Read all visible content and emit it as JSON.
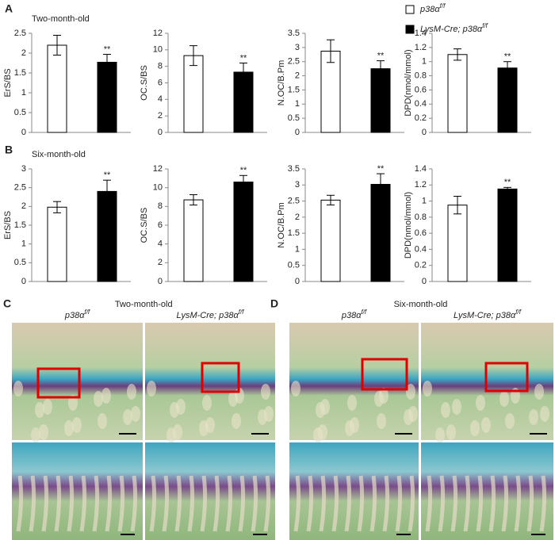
{
  "panel_labels": [
    "A",
    "B",
    "C",
    "D"
  ],
  "legend": [
    {
      "text": "p38α",
      "sup": "f/f",
      "color": "#ffffff"
    },
    {
      "text": "LysM-Cre; p38α",
      "sup": "f/f",
      "color": "#000000"
    }
  ],
  "chart_data": [
    {
      "type": "bar",
      "title": "Two-month-old",
      "ylabel": "ErS/BS",
      "categories": [
        null,
        null
      ],
      "values": [
        2.2,
        1.77
      ],
      "errors": [
        0.25,
        0.2
      ],
      "significance": [
        null,
        "**"
      ],
      "colors": [
        "#ffffff",
        "#000000"
      ],
      "ylim": [
        0,
        2.5
      ],
      "yticks": [
        0,
        0.5,
        1,
        1.5,
        2,
        2.5
      ]
    },
    {
      "type": "bar",
      "ylabel": "OC.S/BS",
      "categories": [
        null,
        null
      ],
      "values": [
        9.3,
        7.3
      ],
      "errors": [
        1.2,
        1.1
      ],
      "significance": [
        null,
        "**"
      ],
      "colors": [
        "#ffffff",
        "#000000"
      ],
      "ylim": [
        0,
        12
      ],
      "yticks": [
        0,
        2,
        4,
        6,
        8,
        10,
        12
      ]
    },
    {
      "type": "bar",
      "ylabel": "N.OC/B.Pm",
      "categories": [
        null,
        null
      ],
      "values": [
        2.87,
        2.25
      ],
      "errors": [
        0.4,
        0.28
      ],
      "significance": [
        null,
        "**"
      ],
      "colors": [
        "#ffffff",
        "#000000"
      ],
      "ylim": [
        0,
        3.5
      ],
      "yticks": [
        0,
        0.5,
        1,
        1.5,
        2,
        2.5,
        3,
        3.5
      ]
    },
    {
      "type": "bar",
      "ylabel": "DPD(nmol/mmol)",
      "categories": [
        null,
        null
      ],
      "values": [
        1.1,
        0.91
      ],
      "errors": [
        0.08,
        0.09
      ],
      "significance": [
        null,
        "**"
      ],
      "colors": [
        "#ffffff",
        "#000000"
      ],
      "ylim": [
        0,
        1.4
      ],
      "yticks": [
        0,
        0.2,
        0.4,
        0.6,
        0.8,
        1,
        1.2,
        1.4
      ]
    },
    {
      "type": "bar",
      "title": "Six-month-old",
      "ylabel": "ErS/BS",
      "categories": [
        null,
        null
      ],
      "values": [
        1.98,
        2.4
      ],
      "errors": [
        0.15,
        0.3
      ],
      "significance": [
        null,
        "**"
      ],
      "colors": [
        "#ffffff",
        "#000000"
      ],
      "ylim": [
        0,
        3
      ],
      "yticks": [
        0,
        0.5,
        1,
        1.5,
        2,
        2.5,
        3
      ]
    },
    {
      "type": "bar",
      "ylabel": "OC.S/BS",
      "categories": [
        null,
        null
      ],
      "values": [
        8.7,
        10.6
      ],
      "errors": [
        0.55,
        0.7
      ],
      "significance": [
        null,
        "**"
      ],
      "colors": [
        "#ffffff",
        "#000000"
      ],
      "ylim": [
        0,
        12
      ],
      "yticks": [
        0,
        2,
        4,
        6,
        8,
        10,
        12
      ]
    },
    {
      "type": "bar",
      "ylabel": "N.OC/B.Pm",
      "categories": [
        null,
        null
      ],
      "values": [
        2.53,
        3.02
      ],
      "errors": [
        0.15,
        0.33
      ],
      "significance": [
        null,
        "**"
      ],
      "colors": [
        "#ffffff",
        "#000000"
      ],
      "ylim": [
        0,
        3.5
      ],
      "yticks": [
        0,
        0.5,
        1,
        1.5,
        2,
        2.5,
        3,
        3.5
      ]
    },
    {
      "type": "bar",
      "ylabel": "DPD(nmol/mmol)",
      "categories": [
        null,
        null
      ],
      "values": [
        0.95,
        1.15
      ],
      "errors": [
        0.11,
        0.02
      ],
      "significance": [
        null,
        "**"
      ],
      "colors": [
        "#ffffff",
        "#000000"
      ],
      "ylim": [
        0,
        1.4
      ],
      "yticks": [
        0,
        0.2,
        0.4,
        0.6,
        0.8,
        1,
        1.2,
        1.4
      ]
    }
  ],
  "histology": [
    {
      "title": "Two-month-old",
      "columns": [
        {
          "text": "p38α",
          "sup": "f/f"
        },
        {
          "text": "LysM-Cre; p38α",
          "sup": "f/f"
        }
      ]
    },
    {
      "title": "Six-month-old",
      "columns": [
        {
          "text": "p38α",
          "sup": "f/f"
        },
        {
          "text": "LysM-Cre; p38α",
          "sup": "f/f"
        }
      ]
    }
  ]
}
